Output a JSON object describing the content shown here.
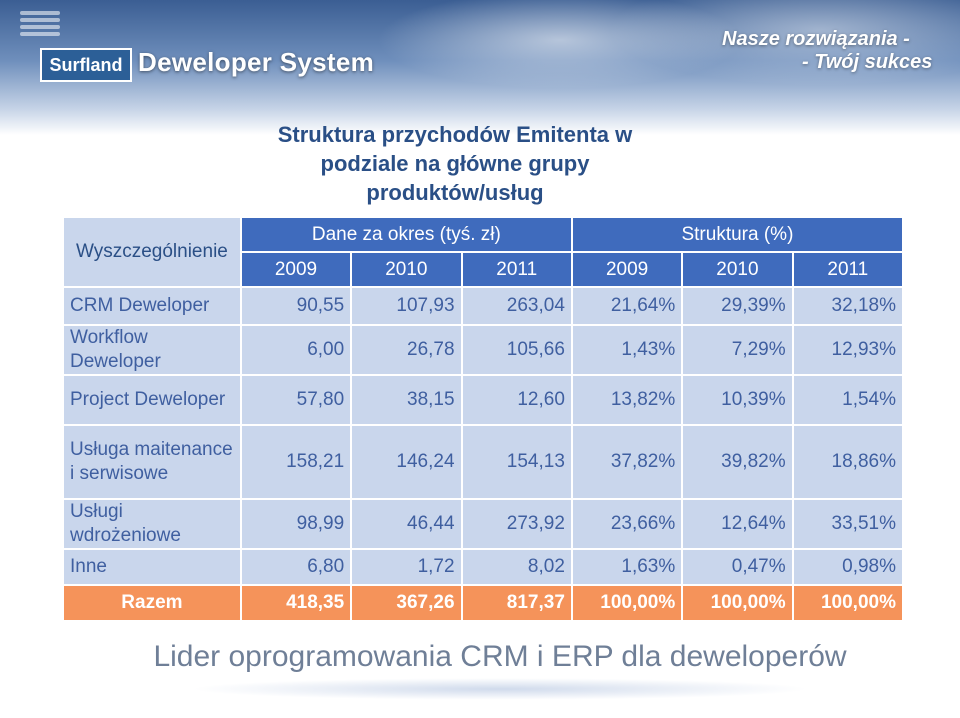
{
  "header": {
    "logo_box": "Surfland",
    "logo_text": "Deweloper System",
    "tagline_line1": "Nasze rozwiązania -",
    "tagline_line2": "- Twój sukces"
  },
  "title": {
    "line1": "Struktura przychodów Emitenta w",
    "line2": "podziale na główne grupy",
    "line3": "produktów/usług"
  },
  "table": {
    "spec_header": "Wyszczególnienie",
    "group1": "Dane za okres (tyś. zł)",
    "group2": "Struktura (%)",
    "years": [
      "2009",
      "2010",
      "2011",
      "2009",
      "2010",
      "2011"
    ],
    "rows": [
      {
        "label": "CRM Deweloper",
        "values": [
          "90,55",
          "107,93",
          "263,04",
          "21,64%",
          "29,39%",
          "32,18%"
        ]
      },
      {
        "label": "Workflow Deweloper",
        "values": [
          "6,00",
          "26,78",
          "105,66",
          "1,43%",
          "7,29%",
          "12,93%"
        ]
      },
      {
        "label": "Project Deweloper",
        "values": [
          "57,80",
          "38,15",
          "12,60",
          "13,82%",
          "10,39%",
          "1,54%"
        ]
      },
      {
        "label": "Usługa maitenance i serwisowe",
        "values": [
          "158,21",
          "146,24",
          "154,13",
          "37,82%",
          "39,82%",
          "18,86%"
        ]
      },
      {
        "label": "Usługi wdrożeniowe",
        "values": [
          "98,99",
          "46,44",
          "273,92",
          "23,66%",
          "12,64%",
          "33,51%"
        ]
      },
      {
        "label": "Inne",
        "values": [
          "6,80",
          "1,72",
          "8,02",
          "1,63%",
          "0,47%",
          "0,98%"
        ]
      }
    ],
    "total": {
      "label": "Razem",
      "values": [
        "418,35",
        "367,26",
        "817,37",
        "100,00%",
        "100,00%",
        "100,00%"
      ]
    }
  },
  "footer": {
    "slogan": "Lider oprogramowania CRM i ERP dla deweloperów"
  }
}
